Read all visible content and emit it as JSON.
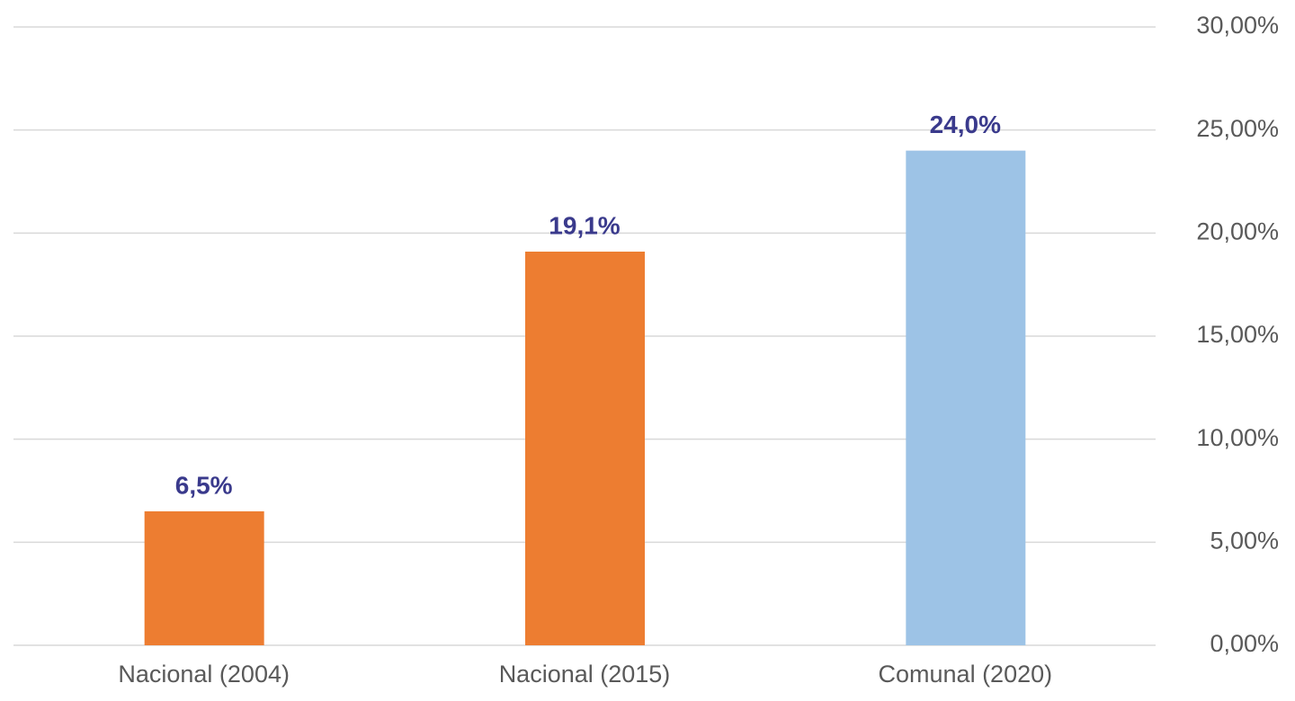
{
  "chart_data": {
    "type": "bar",
    "categories": [
      "Nacional (2004)",
      "Nacional (2015)",
      "Comunal (2020)"
    ],
    "values": [
      6.5,
      19.1,
      24.0
    ],
    "value_labels": [
      "6,5%",
      "19,1%",
      "24,0%"
    ],
    "colors": [
      "#ed7d31",
      "#ed7d31",
      "#9dc3e6"
    ],
    "ylim": [
      0,
      30
    ],
    "yticks": [
      {
        "value": 0,
        "label": "0,00%"
      },
      {
        "value": 5,
        "label": "5,00%"
      },
      {
        "value": 10,
        "label": "10,00%"
      },
      {
        "value": 15,
        "label": "15,00%"
      },
      {
        "value": 20,
        "label": "20,00%"
      },
      {
        "value": 25,
        "label": "25,00%"
      },
      {
        "value": 30,
        "label": "30,00%"
      }
    ],
    "grid": true
  }
}
